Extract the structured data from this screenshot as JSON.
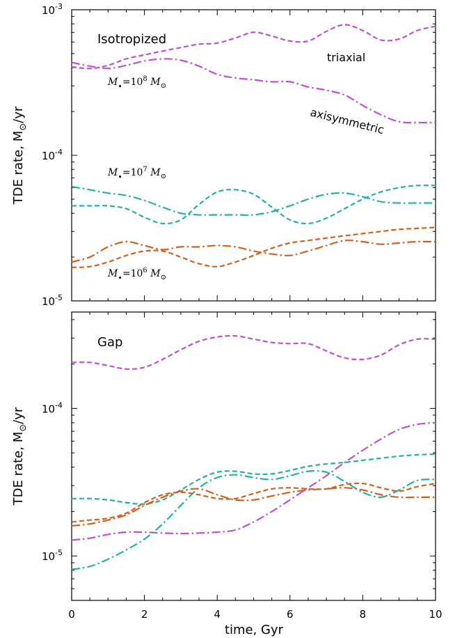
{
  "colors": {
    "purple": "#c04fd6",
    "teal": "#1fb3a5",
    "orange": "#d2601b"
  },
  "labels": {
    "x_title": "time, Gyr",
    "y_title_main": "TDE rate, M",
    "y_title_sub": "⊙",
    "y_title_tail": "/yr",
    "x_ticks": [
      "0",
      "2",
      "4",
      "6",
      "8",
      "10"
    ],
    "top_y_ticks": [
      {
        "base": "10",
        "exp": "-3"
      },
      {
        "base": "10",
        "exp": "-4"
      },
      {
        "base": "10",
        "exp": "-5"
      }
    ],
    "bottom_y_ticks": [
      {
        "base": "10",
        "exp": "-4"
      },
      {
        "base": "10",
        "exp": "-5"
      }
    ]
  },
  "chart_data": [
    {
      "type": "line",
      "title": "Isotropized",
      "xlabel": "time, Gyr",
      "ylabel": "TDE rate, M⊙/yr",
      "xlim": [
        0,
        10
      ],
      "ylim": [
        1e-05,
        0.001
      ],
      "yscale": "log",
      "annotations": [
        {
          "text": "triaxial"
        },
        {
          "text": "axisymmetric",
          "rotate": 14
        },
        {
          "mass_label": {
            "pre": "M",
            "sub": "•",
            "mid": "=10",
            "exp": "8",
            "post": " M",
            "sub2": "⊙"
          }
        },
        {
          "mass_label": {
            "pre": "M",
            "sub": "•",
            "mid": "=10",
            "exp": "7",
            "post": " M",
            "sub2": "⊙"
          }
        },
        {
          "mass_label": {
            "pre": "M",
            "sub": "•",
            "mid": "=10",
            "exp": "6",
            "post": " M",
            "sub2": "⊙"
          }
        }
      ],
      "series": [
        {
          "color": "#c04fd6",
          "dash": "dashed",
          "x": [
            0,
            0.5,
            1,
            1.5,
            2,
            2.5,
            3,
            3.5,
            4,
            4.5,
            5,
            5.5,
            6,
            6.5,
            7,
            7.5,
            8,
            8.5,
            9,
            9.5,
            10
          ],
          "y": [
            0.000405,
            0.000395,
            0.000415,
            0.00046,
            0.00049,
            0.00052,
            0.00055,
            0.00058,
            0.00059,
            0.00064,
            0.0007,
            0.00066,
            0.00061,
            0.00061,
            0.00071,
            0.00079,
            0.00072,
            0.00062,
            0.00063,
            0.00072,
            0.00077
          ]
        },
        {
          "color": "#c04fd6",
          "dash": "dashdot",
          "x": [
            0,
            0.5,
            1,
            1.5,
            2,
            2.5,
            3,
            3.5,
            4,
            4.5,
            5,
            5.5,
            6,
            6.5,
            7,
            7.5,
            8,
            8.5,
            9,
            9.5,
            10
          ],
          "y": [
            0.000435,
            0.00041,
            0.000395,
            0.000415,
            0.000445,
            0.00046,
            0.00045,
            0.00041,
            0.00036,
            0.00034,
            0.00033,
            0.00032,
            0.00032,
            0.000295,
            0.00028,
            0.00026,
            0.00022,
            0.00019,
            0.00017,
            0.000168,
            0.000168
          ]
        },
        {
          "color": "#1fb3a5",
          "dash": "dashed",
          "x": [
            0,
            0.5,
            1,
            1.5,
            2,
            2.5,
            3,
            3.5,
            4,
            4.5,
            5,
            5.5,
            6,
            6.5,
            7,
            7.5,
            8,
            8.5,
            9,
            9.5,
            10
          ],
          "y": [
            4.5e-05,
            4.5e-05,
            4.5e-05,
            4.3e-05,
            3.75e-05,
            3.4e-05,
            3.6e-05,
            4.6e-05,
            5.6e-05,
            5.8e-05,
            5.4e-05,
            4.4e-05,
            3.6e-05,
            3.4e-05,
            3.7e-05,
            4.3e-05,
            5e-05,
            5.6e-05,
            6e-05,
            6.2e-05,
            6.2e-05
          ]
        },
        {
          "color": "#1fb3a5",
          "dash": "dashdot",
          "x": [
            0,
            0.5,
            1,
            1.5,
            2,
            2.5,
            3,
            3.5,
            4,
            4.5,
            5,
            5.5,
            6,
            6.5,
            7,
            7.5,
            8,
            8.5,
            9,
            9.5,
            10
          ],
          "y": [
            6.1e-05,
            5.8e-05,
            5.5e-05,
            5.3e-05,
            4.9e-05,
            4.4e-05,
            4e-05,
            3.9e-05,
            3.9e-05,
            3.9e-05,
            3.9e-05,
            4.1e-05,
            4.5e-05,
            5e-05,
            5.4e-05,
            5.5e-05,
            5.2e-05,
            4.8e-05,
            4.7e-05,
            4.7e-05,
            4.7e-05
          ]
        },
        {
          "color": "#d2601b",
          "dash": "dashed",
          "x": [
            0,
            0.5,
            1,
            1.5,
            2,
            2.5,
            3,
            3.5,
            4,
            4.5,
            5,
            5.5,
            6,
            6.5,
            7,
            7.5,
            8,
            8.5,
            9,
            9.5,
            10
          ],
          "y": [
            1.7e-05,
            1.72e-05,
            1.85e-05,
            2.05e-05,
            2.2e-05,
            2.2e-05,
            2e-05,
            1.8e-05,
            1.72e-05,
            1.85e-05,
            2.05e-05,
            2.3e-05,
            2.5e-05,
            2.6e-05,
            2.7e-05,
            2.8e-05,
            2.9e-05,
            3e-05,
            3.1e-05,
            3.15e-05,
            3.2e-05
          ]
        },
        {
          "color": "#d2601b",
          "dash": "dashdot",
          "x": [
            0,
            0.5,
            1,
            1.5,
            2,
            2.5,
            3,
            3.5,
            4,
            4.5,
            5,
            5.5,
            6,
            6.5,
            7,
            7.5,
            8,
            8.5,
            9,
            9.5,
            10
          ],
          "y": [
            1.85e-05,
            2e-05,
            2.35e-05,
            2.55e-05,
            2.4e-05,
            2.25e-05,
            2.35e-05,
            2.35e-05,
            2.4e-05,
            2.35e-05,
            2.2e-05,
            2.1e-05,
            2.05e-05,
            2.2e-05,
            2.4e-05,
            2.6e-05,
            2.55e-05,
            2.45e-05,
            2.5e-05,
            2.55e-05,
            2.55e-05
          ]
        }
      ]
    },
    {
      "type": "line",
      "title": "Gap",
      "xlabel": "time, Gyr",
      "ylabel": "TDE rate, M⊙/yr",
      "xlim": [
        0,
        10
      ],
      "ylim": [
        5e-06,
        0.00045
      ],
      "yscale": "log",
      "series": [
        {
          "color": "#c04fd6",
          "dash": "dashed",
          "x": [
            0,
            0.5,
            1,
            1.5,
            2,
            2.5,
            3,
            3.5,
            4,
            4.5,
            5,
            5.5,
            6,
            6.5,
            7,
            7.5,
            8,
            8.5,
            9,
            9.5,
            10
          ],
          "y": [
            0.000205,
            0.000205,
            0.000195,
            0.000185,
            0.00019,
            0.000215,
            0.00025,
            0.000285,
            0.000305,
            0.00031,
            0.000295,
            0.00028,
            0.000275,
            0.000275,
            0.000245,
            0.00022,
            0.000215,
            0.00023,
            0.00027,
            0.000295,
            0.000295
          ]
        },
        {
          "color": "#c04fd6",
          "dash": "dashdot",
          "x": [
            0,
            0.5,
            1,
            1.5,
            2,
            2.5,
            3,
            3.5,
            4,
            4.5,
            5,
            5.5,
            6,
            6.5,
            7,
            7.5,
            8,
            8.5,
            9,
            9.5,
            10
          ],
          "y": [
            1.28e-05,
            1.32e-05,
            1.4e-05,
            1.45e-05,
            1.45e-05,
            1.43e-05,
            1.42e-05,
            1.43e-05,
            1.45e-05,
            1.5e-05,
            1.7e-05,
            2e-05,
            2.4e-05,
            2.9e-05,
            3.5e-05,
            4.3e-05,
            5.2e-05,
            6.2e-05,
            7.2e-05,
            7.8e-05,
            8e-05
          ]
        },
        {
          "color": "#1fb3a5",
          "dash": "dashed",
          "x": [
            0,
            0.5,
            1,
            1.5,
            2,
            2.5,
            3,
            3.5,
            4,
            4.5,
            5,
            5.5,
            6,
            6.5,
            7,
            7.5,
            8,
            8.5,
            9,
            9.5,
            10
          ],
          "y": [
            2.45e-05,
            2.45e-05,
            2.4e-05,
            2.3e-05,
            2.25e-05,
            2.4e-05,
            2.8e-05,
            3.3e-05,
            3.7e-05,
            3.75e-05,
            3.6e-05,
            3.6e-05,
            3.8e-05,
            4.05e-05,
            4.2e-05,
            4.3e-05,
            4.45e-05,
            4.6e-05,
            4.75e-05,
            4.85e-05,
            4.9e-05
          ]
        },
        {
          "color": "#1fb3a5",
          "dash": "dashdot",
          "x": [
            0,
            0.5,
            1,
            1.5,
            2,
            2.5,
            3,
            3.5,
            4,
            4.5,
            5,
            5.5,
            6,
            6.5,
            7,
            7.5,
            8,
            8.5,
            9,
            9.5,
            10
          ],
          "y": [
            8.1e-06,
            8.5e-06,
            9.5e-06,
            1.1e-05,
            1.3e-05,
            1.65e-05,
            2.2e-05,
            2.9e-05,
            3.4e-05,
            3.55e-05,
            3.4e-05,
            3.3e-05,
            3.5e-05,
            3.75e-05,
            3.7e-05,
            3.2e-05,
            2.7e-05,
            2.5e-05,
            2.8e-05,
            3.25e-05,
            3.3e-05
          ]
        },
        {
          "color": "#d2601b",
          "dash": "dashed",
          "x": [
            0,
            0.5,
            1,
            1.5,
            2,
            2.5,
            3,
            3.5,
            4,
            4.5,
            5,
            5.5,
            6,
            6.5,
            7,
            7.5,
            8,
            8.5,
            9,
            9.5,
            10
          ],
          "y": [
            1.7e-05,
            1.75e-05,
            1.8e-05,
            1.95e-05,
            2.3e-05,
            2.6e-05,
            2.7e-05,
            2.6e-05,
            2.45e-05,
            2.45e-05,
            2.65e-05,
            2.85e-05,
            2.9e-05,
            2.85e-05,
            2.85e-05,
            3.05e-05,
            3.1e-05,
            2.9e-05,
            2.75e-05,
            2.95e-05,
            3.1e-05
          ]
        },
        {
          "color": "#d2601b",
          "dash": "dashdot",
          "x": [
            0,
            0.5,
            1,
            1.5,
            2,
            2.5,
            3,
            3.5,
            4,
            4.5,
            5,
            5.5,
            6,
            6.5,
            7,
            7.5,
            8,
            8.5,
            9,
            9.5,
            10
          ],
          "y": [
            1.6e-05,
            1.65e-05,
            1.75e-05,
            1.9e-05,
            2.2e-05,
            2.5e-05,
            2.75e-05,
            2.85e-05,
            2.6e-05,
            2.4e-05,
            2.4e-05,
            2.55e-05,
            2.7e-05,
            2.8e-05,
            2.85e-05,
            2.9e-05,
            2.8e-05,
            2.6e-05,
            2.5e-05,
            2.5e-05,
            2.5e-05
          ]
        }
      ]
    }
  ]
}
